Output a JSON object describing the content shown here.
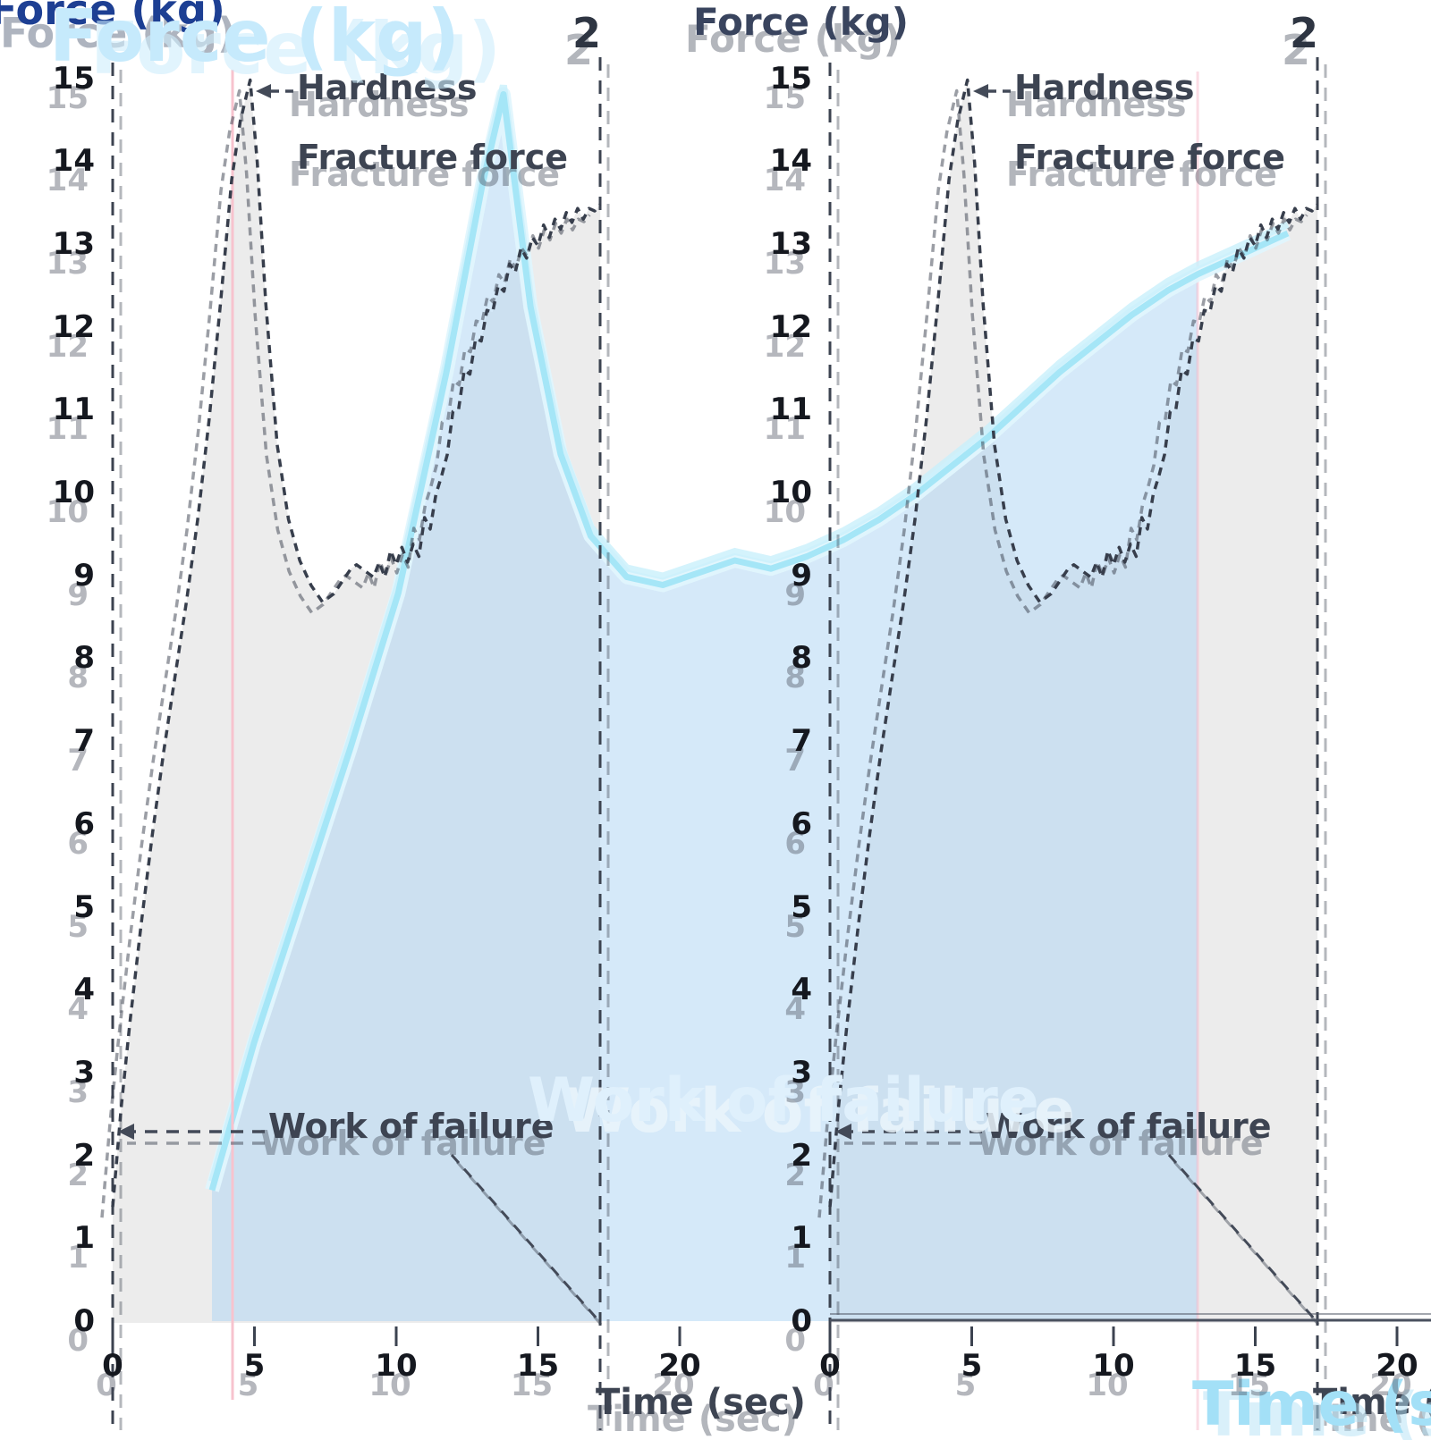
{
  "labels": {
    "force_axis": "Force (kg)",
    "time_axis": "Time (sec)",
    "hardness": "Hardness",
    "fracture": "Fracture force",
    "work": "Work of failure",
    "marker": "2"
  },
  "axes": {
    "y_ticks": [
      0,
      1,
      2,
      3,
      4,
      5,
      6,
      7,
      8,
      9,
      10,
      11,
      12,
      13,
      14,
      15
    ],
    "x_ticks": [
      0,
      5,
      10,
      15,
      20
    ],
    "ylabel": "Force (kg)",
    "xlabel": "Time (sec)"
  },
  "colors": {
    "dark_curve": "#373e4c",
    "grey_fill": "#ececec",
    "work_fill": "#aad2f3",
    "ghost_curve": "#a5e6f7",
    "marker_pink": "#f7c3ce",
    "axis_title_navy": "#1d3f93",
    "big_ghost_text": "#c6eafc"
  },
  "chart_data": {
    "type": "area",
    "title": "",
    "xlabel": "Time (sec)",
    "ylabel": "Force (kg)",
    "xlim": [
      0,
      20
    ],
    "ylim": [
      0,
      15
    ],
    "grid": false,
    "legend_position": "none",
    "annotations": [
      "Hardness",
      "Fracture force",
      "Work of failure"
    ],
    "marker_label": "2",
    "marker_time": 17.2,
    "work_level": 2.3,
    "work_region": [
      4.2,
      17.2
    ],
    "x": [
      0,
      0.3,
      0.6,
      1.0,
      1.4,
      1.8,
      2.2,
      2.6,
      3.0,
      3.4,
      3.8,
      4.2,
      4.5,
      4.85,
      5.1,
      5.4,
      5.8,
      6.2,
      6.6,
      7.0,
      7.2,
      7.4,
      7.6,
      7.8,
      8.0,
      8.2,
      8.4,
      8.6,
      8.8,
      9.0,
      9.2,
      9.4,
      9.6,
      9.8,
      10.0,
      10.2,
      10.4,
      10.6,
      10.8,
      11.0,
      11.2,
      11.4,
      11.6,
      11.8,
      12.0,
      12.2,
      12.4,
      12.6,
      12.8,
      13.0,
      13.2,
      13.4,
      13.6,
      13.8,
      14.0,
      14.2,
      14.4,
      14.6,
      14.8,
      15.0,
      15.2,
      15.4,
      15.6,
      15.8,
      16.0,
      16.2,
      16.4,
      16.6,
      16.8,
      17.0,
      17.2
    ],
    "series": [
      {
        "name": "Force (dark, dashed)",
        "values": [
          1.4,
          2.6,
          3.6,
          4.8,
          5.9,
          6.9,
          7.8,
          8.7,
          9.7,
          10.9,
          12.3,
          13.8,
          14.5,
          15.0,
          14.0,
          12.3,
          10.6,
          9.7,
          9.2,
          8.9,
          8.8,
          8.7,
          8.75,
          8.8,
          8.9,
          9.0,
          9.1,
          9.15,
          9.1,
          9.05,
          9.0,
          9.18,
          9.0,
          9.32,
          9.15,
          9.36,
          9.18,
          9.4,
          9.25,
          9.72,
          9.58,
          10.0,
          10.22,
          10.48,
          11.0,
          11.02,
          11.5,
          11.45,
          11.88,
          11.85,
          12.22,
          12.2,
          12.52,
          12.45,
          12.78,
          12.68,
          12.97,
          12.85,
          13.1,
          13.0,
          13.25,
          13.1,
          13.32,
          13.2,
          13.4,
          13.28,
          13.45,
          13.32,
          13.45,
          13.42,
          13.5
        ]
      },
      {
        "name": "Force (enlarged pale ghost)",
        "x": [
          0,
          0.7,
          1.5,
          2.3,
          3.1,
          3.9,
          4.5,
          4.85,
          5.3,
          5.8,
          6.3,
          6.9,
          7.5,
          8.1,
          8.7,
          9.3,
          9.9,
          10.5,
          11.1,
          11.7,
          12.3,
          12.9,
          13.5,
          14.1,
          14.7,
          15.3,
          15.9,
          16.4,
          17.0,
          17.9
        ],
        "values": [
          1.6,
          3.4,
          5.2,
          7.0,
          8.9,
          11.6,
          13.9,
          15.0,
          12.4,
          10.6,
          9.6,
          9.1,
          9.0,
          9.15,
          9.3,
          9.2,
          9.35,
          9.55,
          9.8,
          10.1,
          10.45,
          10.8,
          11.2,
          11.6,
          11.95,
          12.3,
          12.6,
          12.8,
          13.0,
          13.3
        ]
      }
    ]
  }
}
